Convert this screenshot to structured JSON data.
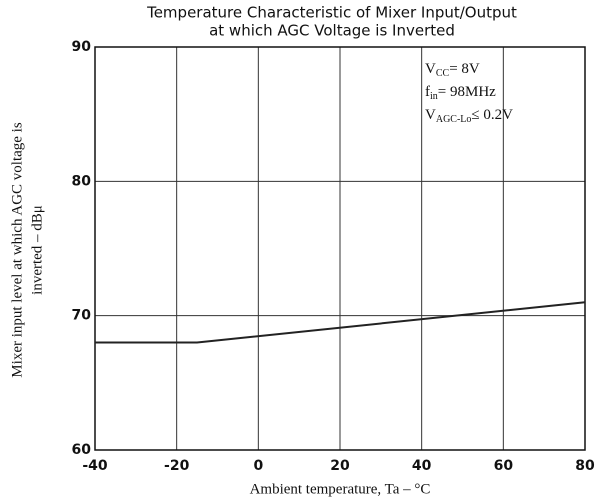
{
  "chart_data": {
    "type": "line",
    "title": [
      "Temperature Characteristic of Mixer Input/Output",
      "at which AGC Voltage is Inverted"
    ],
    "x_label": "Ambient temperature, Ta  –  °C",
    "y_label": [
      "Mixer input level at which AGC voltage is",
      "inverted  –  dBμ"
    ],
    "annotations": [
      {
        "symbol": "V",
        "subscript": "CC",
        "text": "= 8V"
      },
      {
        "symbol": "f",
        "subscript": "in",
        "text": "= 98MHz"
      },
      {
        "symbol": "V",
        "subscript": "AGC-Lo",
        "text": "≤ 0.2V"
      }
    ],
    "x": [
      -40,
      -15,
      80
    ],
    "series": [
      {
        "color": "#222222",
        "values": [
          68,
          68,
          71
        ]
      }
    ],
    "xlim": [
      -40,
      80
    ],
    "ylim": [
      60,
      90
    ],
    "xticks": [
      -40,
      -20,
      0,
      20,
      40,
      60,
      80
    ],
    "yticks": [
      60,
      70,
      80,
      90
    ],
    "grid": true
  }
}
